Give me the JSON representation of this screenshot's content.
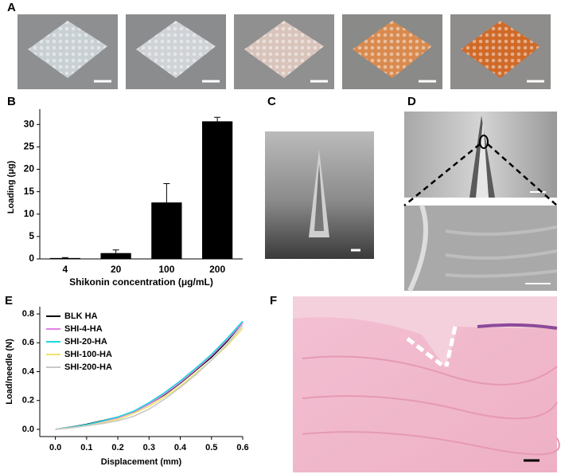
{
  "panel_labels": [
    "A",
    "B",
    "C",
    "D",
    "E",
    "F"
  ],
  "chart_data": [
    {
      "type": "bar",
      "categories": [
        "4",
        "20",
        "100",
        "200"
      ],
      "values": [
        0.2,
        1.3,
        12.6,
        30.7
      ],
      "errors": [
        0.1,
        0.7,
        4.2,
        0.9
      ],
      "color": "#000000",
      "xlabel": "Shikonin concentration (μg/mL)",
      "ylabel": "Loading (μg)",
      "ylim": [
        0,
        32
      ],
      "yticks": [
        0,
        5,
        10,
        15,
        20,
        25,
        30
      ]
    },
    {
      "type": "line",
      "x": [
        0,
        0.05,
        0.1,
        0.15,
        0.2,
        0.25,
        0.3,
        0.35,
        0.4,
        0.45,
        0.5,
        0.55,
        0.6
      ],
      "series": [
        {
          "name": "BLK HA",
          "color": "#000000",
          "values": [
            0,
            0.015,
            0.035,
            0.06,
            0.085,
            0.12,
            0.175,
            0.24,
            0.32,
            0.41,
            0.5,
            0.61,
            0.74
          ]
        },
        {
          "name": "SHI-4-HA",
          "color": "#e47fe4",
          "values": [
            0,
            0.012,
            0.03,
            0.055,
            0.08,
            0.12,
            0.175,
            0.245,
            0.325,
            0.415,
            0.51,
            0.62,
            0.74
          ]
        },
        {
          "name": "SHI-20-HA",
          "color": "#1fd6e0",
          "values": [
            0,
            0.014,
            0.032,
            0.058,
            0.085,
            0.125,
            0.185,
            0.255,
            0.335,
            0.425,
            0.52,
            0.63,
            0.75
          ]
        },
        {
          "name": "SHI-100-HA",
          "color": "#f2e36a",
          "values": [
            0,
            0.01,
            0.025,
            0.045,
            0.07,
            0.11,
            0.16,
            0.225,
            0.3,
            0.39,
            0.48,
            0.58,
            0.7
          ]
        },
        {
          "name": "SHI-200-HA",
          "color": "#c8c8c8",
          "values": [
            0,
            0.01,
            0.025,
            0.04,
            0.06,
            0.09,
            0.14,
            0.21,
            0.29,
            0.38,
            0.48,
            0.59,
            0.72
          ]
        }
      ],
      "xlabel": "Displacement (mm)",
      "ylabel": "Load/needle (N)",
      "xlim": [
        -0.05,
        0.6
      ],
      "xticks": [
        {
          "value": 0,
          "label": "0.0"
        },
        0.1,
        0.2,
        0.3,
        0.4,
        0.5,
        0.6
      ],
      "ylim": [
        -0.05,
        0.85
      ],
      "yticks": [
        {
          "value": 0,
          "label": "0.0"
        },
        0.2,
        0.4,
        0.6,
        0.8
      ]
    }
  ]
}
